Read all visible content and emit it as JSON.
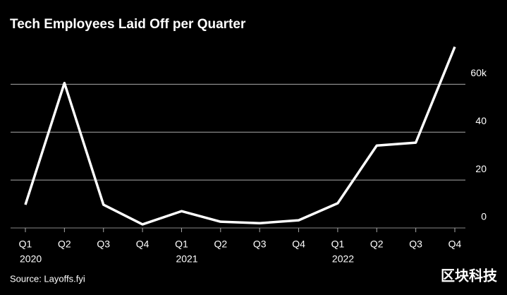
{
  "chart_data": {
    "type": "line",
    "title": "Tech Employees Laid Off per Quarter",
    "source": "Source: Layoffs.fyi",
    "watermark": "区块科技",
    "categories": [
      "Q1",
      "Q2",
      "Q3",
      "Q4",
      "Q1",
      "Q2",
      "Q3",
      "Q4",
      "Q1",
      "Q2",
      "Q3",
      "Q4"
    ],
    "years": [
      "2020",
      null,
      null,
      null,
      "2021",
      null,
      null,
      null,
      "2022",
      null,
      null,
      null
    ],
    "values": [
      9.7,
      60.5,
      9.7,
      1.5,
      7,
      2.6,
      2,
      3.2,
      10.3,
      34.4,
      35.6,
      75.6
    ],
    "color": "#ffffff",
    "ylim": [
      0,
      76
    ],
    "yticks": [
      0,
      20,
      40,
      {
        "value": 60,
        "label": "60k"
      }
    ],
    "grid": true
  }
}
